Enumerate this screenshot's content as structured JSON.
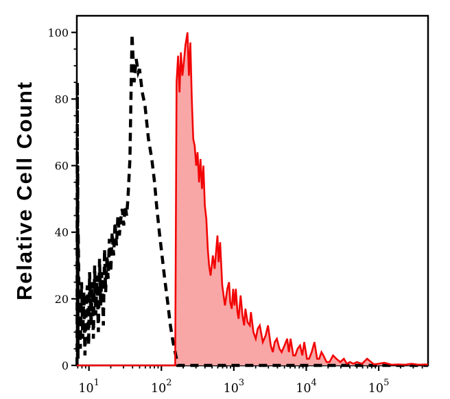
{
  "figure": {
    "kind": "flow-cytometry-overlay-histogram",
    "background": "#ffffff"
  },
  "chart_data": {
    "type": "area",
    "title": "",
    "xlabel": "",
    "ylabel": "Relative Cell Count",
    "x_scale": "log10",
    "xlim": [
      6.8,
      480000
    ],
    "ylim": [
      0,
      105
    ],
    "grid": "off",
    "legend": "none",
    "frame": "full-box",
    "x_major_ticks": [
      {
        "value": 10,
        "label_base": "10",
        "label_exp": "1"
      },
      {
        "value": 100,
        "label_base": "10",
        "label_exp": "2"
      },
      {
        "value": 1000,
        "label_base": "10",
        "label_exp": "3"
      },
      {
        "value": 10000,
        "label_base": "10",
        "label_exp": "4"
      },
      {
        "value": 100000,
        "label_base": "10",
        "label_exp": "5"
      }
    ],
    "x_minor_ticks": "2-9 per decade",
    "y_major_ticks": [
      {
        "value": 0,
        "label": "0"
      },
      {
        "value": 20,
        "label": "20"
      },
      {
        "value": 40,
        "label": "40"
      },
      {
        "value": 60,
        "label": "60"
      },
      {
        "value": 80,
        "label": "80"
      },
      {
        "value": 100,
        "label": "100"
      }
    ],
    "y_minor_step": 5,
    "colors": {
      "axis": "#000000",
      "isotype_line": "#000000",
      "stain_line": "#f20505",
      "stain_fill": "#f8a6a6",
      "background": "#ffffff"
    },
    "series": [
      {
        "name": "isotype control (open black dashed histogram)",
        "line_style": "dashed",
        "fill": "none",
        "points": [
          [
            6.85,
            0
          ],
          [
            6.9,
            85
          ],
          [
            6.95,
            5
          ],
          [
            7.0,
            60
          ],
          [
            7.05,
            2
          ],
          [
            7.1,
            40
          ],
          [
            7.3,
            18
          ],
          [
            7.6,
            5
          ],
          [
            7.9,
            25
          ],
          [
            8.2,
            8
          ],
          [
            8.5,
            22
          ],
          [
            8.8,
            3
          ],
          [
            9.1,
            15
          ],
          [
            9.5,
            24
          ],
          [
            9.9,
            6
          ],
          [
            10.2,
            28
          ],
          [
            10.7,
            12
          ],
          [
            11.1,
            25
          ],
          [
            11.5,
            8
          ],
          [
            12.0,
            30
          ],
          [
            12.4,
            15
          ],
          [
            12.9,
            27
          ],
          [
            13.5,
            10
          ],
          [
            14.0,
            32
          ],
          [
            14.5,
            18
          ],
          [
            15.1,
            28
          ],
          [
            15.8,
            12
          ],
          [
            16.4,
            35
          ],
          [
            17.0,
            22
          ],
          [
            17.8,
            33
          ],
          [
            18.4,
            26
          ],
          [
            19.1,
            38
          ],
          [
            20.0,
            28
          ],
          [
            20.9,
            40
          ],
          [
            21.9,
            33
          ],
          [
            22.9,
            43
          ],
          [
            24.0,
            36
          ],
          [
            25.1,
            45
          ],
          [
            26.3,
            39
          ],
          [
            27.5,
            44
          ],
          [
            28.8,
            47
          ],
          [
            30.2,
            42
          ],
          [
            31.6,
            48
          ],
          [
            33.1,
            45
          ],
          [
            34.5,
            50
          ],
          [
            36.8,
            62
          ],
          [
            39.3,
            99.5
          ],
          [
            42.0,
            85
          ],
          [
            44.8,
            92
          ],
          [
            47.9,
            88
          ],
          [
            49.9,
            89
          ],
          [
            54.5,
            82
          ],
          [
            59.4,
            78
          ],
          [
            66.2,
            68
          ],
          [
            73.8,
            62
          ],
          [
            80.5,
            55
          ],
          [
            85.9,
            48
          ],
          [
            93.8,
            40
          ],
          [
            102,
            33
          ],
          [
            111,
            26
          ],
          [
            122,
            19
          ],
          [
            133,
            12
          ],
          [
            145,
            7
          ],
          [
            158,
            3
          ],
          [
            168,
            0
          ],
          [
            480000,
            0
          ]
        ]
      },
      {
        "name": "stained sample (red filled histogram)",
        "line_style": "solid",
        "fill": "stain_fill",
        "points": [
          [
            6.8,
            0
          ],
          [
            155,
            0
          ],
          [
            162,
            85
          ],
          [
            170,
            93
          ],
          [
            178,
            82
          ],
          [
            186,
            94
          ],
          [
            195,
            87
          ],
          [
            204,
            91
          ],
          [
            214,
            96
          ],
          [
            229,
            100
          ],
          [
            240,
            87
          ],
          [
            251,
            97
          ],
          [
            263,
            80
          ],
          [
            275,
            68
          ],
          [
            288,
            66
          ],
          [
            302,
            60
          ],
          [
            316,
            64
          ],
          [
            331,
            55
          ],
          [
            347,
            62
          ],
          [
            363,
            53
          ],
          [
            380,
            60
          ],
          [
            398,
            48
          ],
          [
            417,
            44
          ],
          [
            437,
            35
          ],
          [
            455,
            30
          ],
          [
            478,
            27
          ],
          [
            513,
            33
          ],
          [
            543,
            29
          ],
          [
            594,
            39
          ],
          [
            617,
            31
          ],
          [
            647,
            37
          ],
          [
            692,
            24
          ],
          [
            753,
            18
          ],
          [
            813,
            23
          ],
          [
            859,
            25
          ],
          [
            891,
            19
          ],
          [
            937,
            17
          ],
          [
            980,
            23
          ],
          [
            1023,
            18
          ],
          [
            1067,
            23
          ],
          [
            1122,
            16
          ],
          [
            1164,
            14
          ],
          [
            1242,
            21
          ],
          [
            1318,
            15
          ],
          [
            1387,
            12
          ],
          [
            1445,
            17
          ],
          [
            1549,
            13
          ],
          [
            1660,
            12
          ],
          [
            1722,
            16
          ],
          [
            1862,
            10
          ],
          [
            2004,
            8
          ],
          [
            2138,
            11
          ],
          [
            2280,
            12
          ],
          [
            2512,
            7
          ],
          [
            2754,
            9
          ],
          [
            2965,
            12
          ],
          [
            3236,
            6
          ],
          [
            3451,
            4
          ],
          [
            3673,
            7
          ],
          [
            3926,
            8
          ],
          [
            4266,
            5
          ],
          [
            4571,
            4
          ],
          [
            5012,
            6
          ],
          [
            5445,
            8
          ],
          [
            5754,
            4
          ],
          [
            6067,
            8
          ],
          [
            6607,
            3
          ],
          [
            7063,
            3
          ],
          [
            7586,
            5
          ],
          [
            8222,
            6
          ],
          [
            8810,
            3
          ],
          [
            9376,
            7
          ],
          [
            10230,
            2
          ],
          [
            10914,
            2
          ],
          [
            11885,
            4
          ],
          [
            12971,
            7
          ],
          [
            14125,
            2
          ],
          [
            15101,
            2
          ],
          [
            16218,
            4
          ],
          [
            17219,
            3
          ],
          [
            19055,
            1
          ],
          [
            20940,
            1
          ],
          [
            23442,
            3
          ],
          [
            26002,
            2
          ],
          [
            29512,
            1
          ],
          [
            33037,
            2
          ],
          [
            36308,
            0.5
          ],
          [
            40179,
            1
          ],
          [
            44668,
            0.5
          ],
          [
            49888,
            1
          ],
          [
            58884,
            0.5
          ],
          [
            69183,
            2
          ],
          [
            85902,
            0.3
          ],
          [
            100000,
            0.5
          ],
          [
            118850,
            0.8
          ],
          [
            151356,
            0.2
          ],
          [
            183654,
            0.3
          ],
          [
            229087,
            0.2
          ],
          [
            283790,
            0.5
          ],
          [
            354813,
            0.2
          ],
          [
            438531,
            0.3
          ],
          [
            478630,
            0.2
          ]
        ]
      }
    ]
  }
}
